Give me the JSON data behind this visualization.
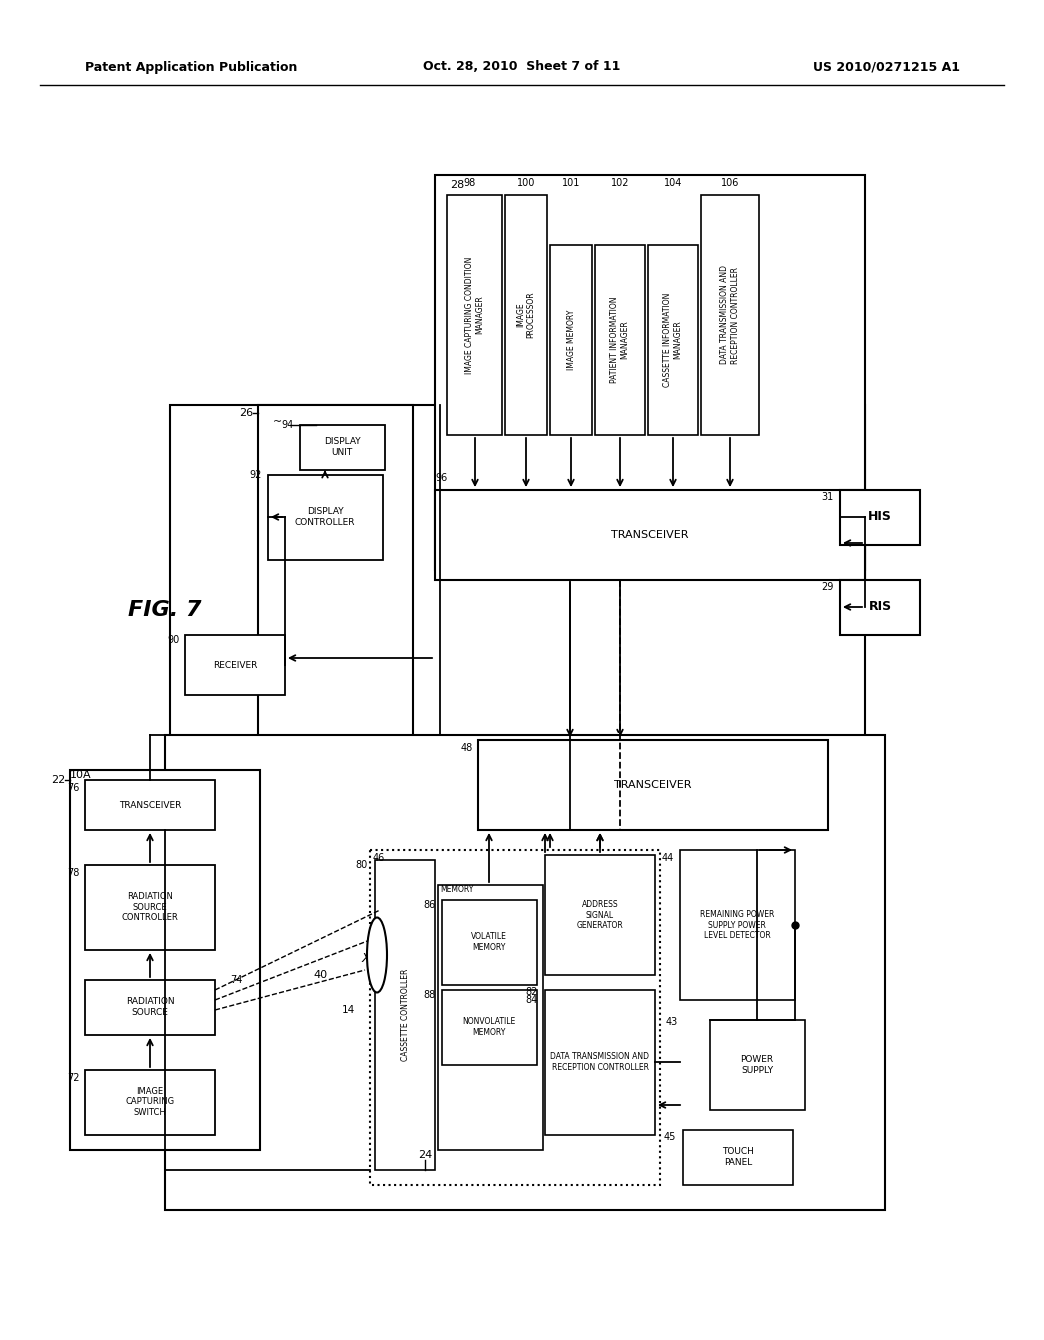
{
  "title_left": "Patent Application Publication",
  "title_center": "Oct. 28, 2010  Sheet 7 of 11",
  "title_right": "US 2010/0271215 A1",
  "fig_label": "FIG. 7",
  "background": "#ffffff"
}
